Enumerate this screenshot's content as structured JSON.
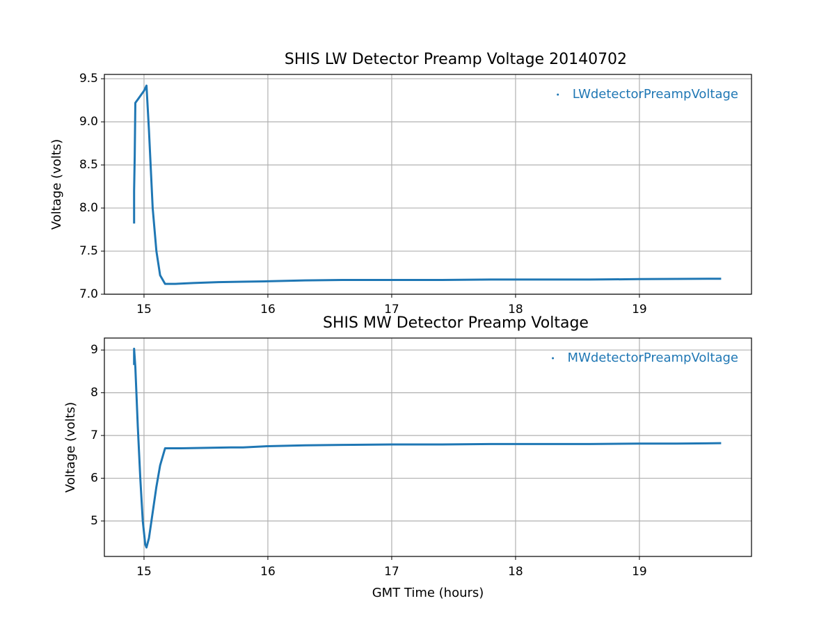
{
  "chart_data": [
    {
      "type": "line",
      "title": "SHIS LW Detector Preamp Voltage 20140702",
      "ylabel": "Voltage (volts)",
      "x": [
        14.92,
        14.92,
        14.92,
        14.92,
        14.925,
        14.93,
        14.95,
        14.98,
        15.0,
        15.02,
        15.04,
        15.07,
        15.1,
        15.13,
        15.17,
        15.25,
        15.4,
        15.6,
        15.8,
        16.0,
        16.3,
        16.6,
        17.0,
        17.4,
        17.8,
        18.2,
        18.6,
        19.0,
        19.3,
        19.66
      ],
      "series": [
        {
          "name": "LWdetectorPreampVoltage",
          "color": "#1f77b4",
          "values": [
            7.82,
            7.93,
            8.05,
            8.2,
            8.6,
            9.22,
            9.26,
            9.32,
            9.36,
            9.42,
            8.9,
            8.0,
            7.5,
            7.22,
            7.12,
            7.12,
            7.13,
            7.14,
            7.145,
            7.15,
            7.16,
            7.165,
            7.165,
            7.165,
            7.17,
            7.17,
            7.17,
            7.175,
            7.178,
            7.18
          ]
        }
      ],
      "xlim": [
        14.68,
        19.905
      ],
      "xticks": [
        15,
        16,
        17,
        18,
        19
      ],
      "ylim": [
        7.0,
        9.55
      ],
      "yticks": [
        {
          "value": 7,
          "label": "7.0"
        },
        7.5,
        {
          "value": 8,
          "label": "8.0"
        },
        8.5,
        {
          "value": 9,
          "label": "9.0"
        },
        9.5
      ],
      "grid": true,
      "legend": "upper right"
    },
    {
      "type": "line",
      "title": "SHIS MW Detector Preamp Voltage",
      "xlabel": "GMT Time (hours)",
      "ylabel": "Voltage (volts)",
      "x": [
        14.92,
        14.92,
        14.93,
        14.95,
        14.97,
        14.99,
        15.01,
        15.02,
        15.04,
        15.07,
        15.1,
        15.13,
        15.17,
        15.3,
        15.5,
        15.7,
        15.8,
        16.0,
        16.3,
        16.6,
        17.0,
        17.4,
        17.8,
        18.2,
        18.6,
        19.0,
        19.3,
        19.66
      ],
      "series": [
        {
          "name": "MWdetectorPreampVoltage",
          "color": "#1f77b4",
          "values": [
            8.65,
            9.03,
            8.6,
            7.2,
            6.0,
            5.0,
            4.45,
            4.38,
            4.6,
            5.2,
            5.8,
            6.3,
            6.7,
            6.7,
            6.71,
            6.72,
            6.72,
            6.75,
            6.77,
            6.78,
            6.79,
            6.79,
            6.8,
            6.8,
            6.8,
            6.81,
            6.81,
            6.82
          ]
        }
      ],
      "xlim": [
        14.68,
        19.905
      ],
      "xticks": [
        15,
        16,
        17,
        18,
        19
      ],
      "ylim": [
        4.17,
        9.28
      ],
      "yticks": [
        5,
        6,
        7,
        8,
        9
      ],
      "grid": true,
      "legend": "upper right"
    }
  ]
}
